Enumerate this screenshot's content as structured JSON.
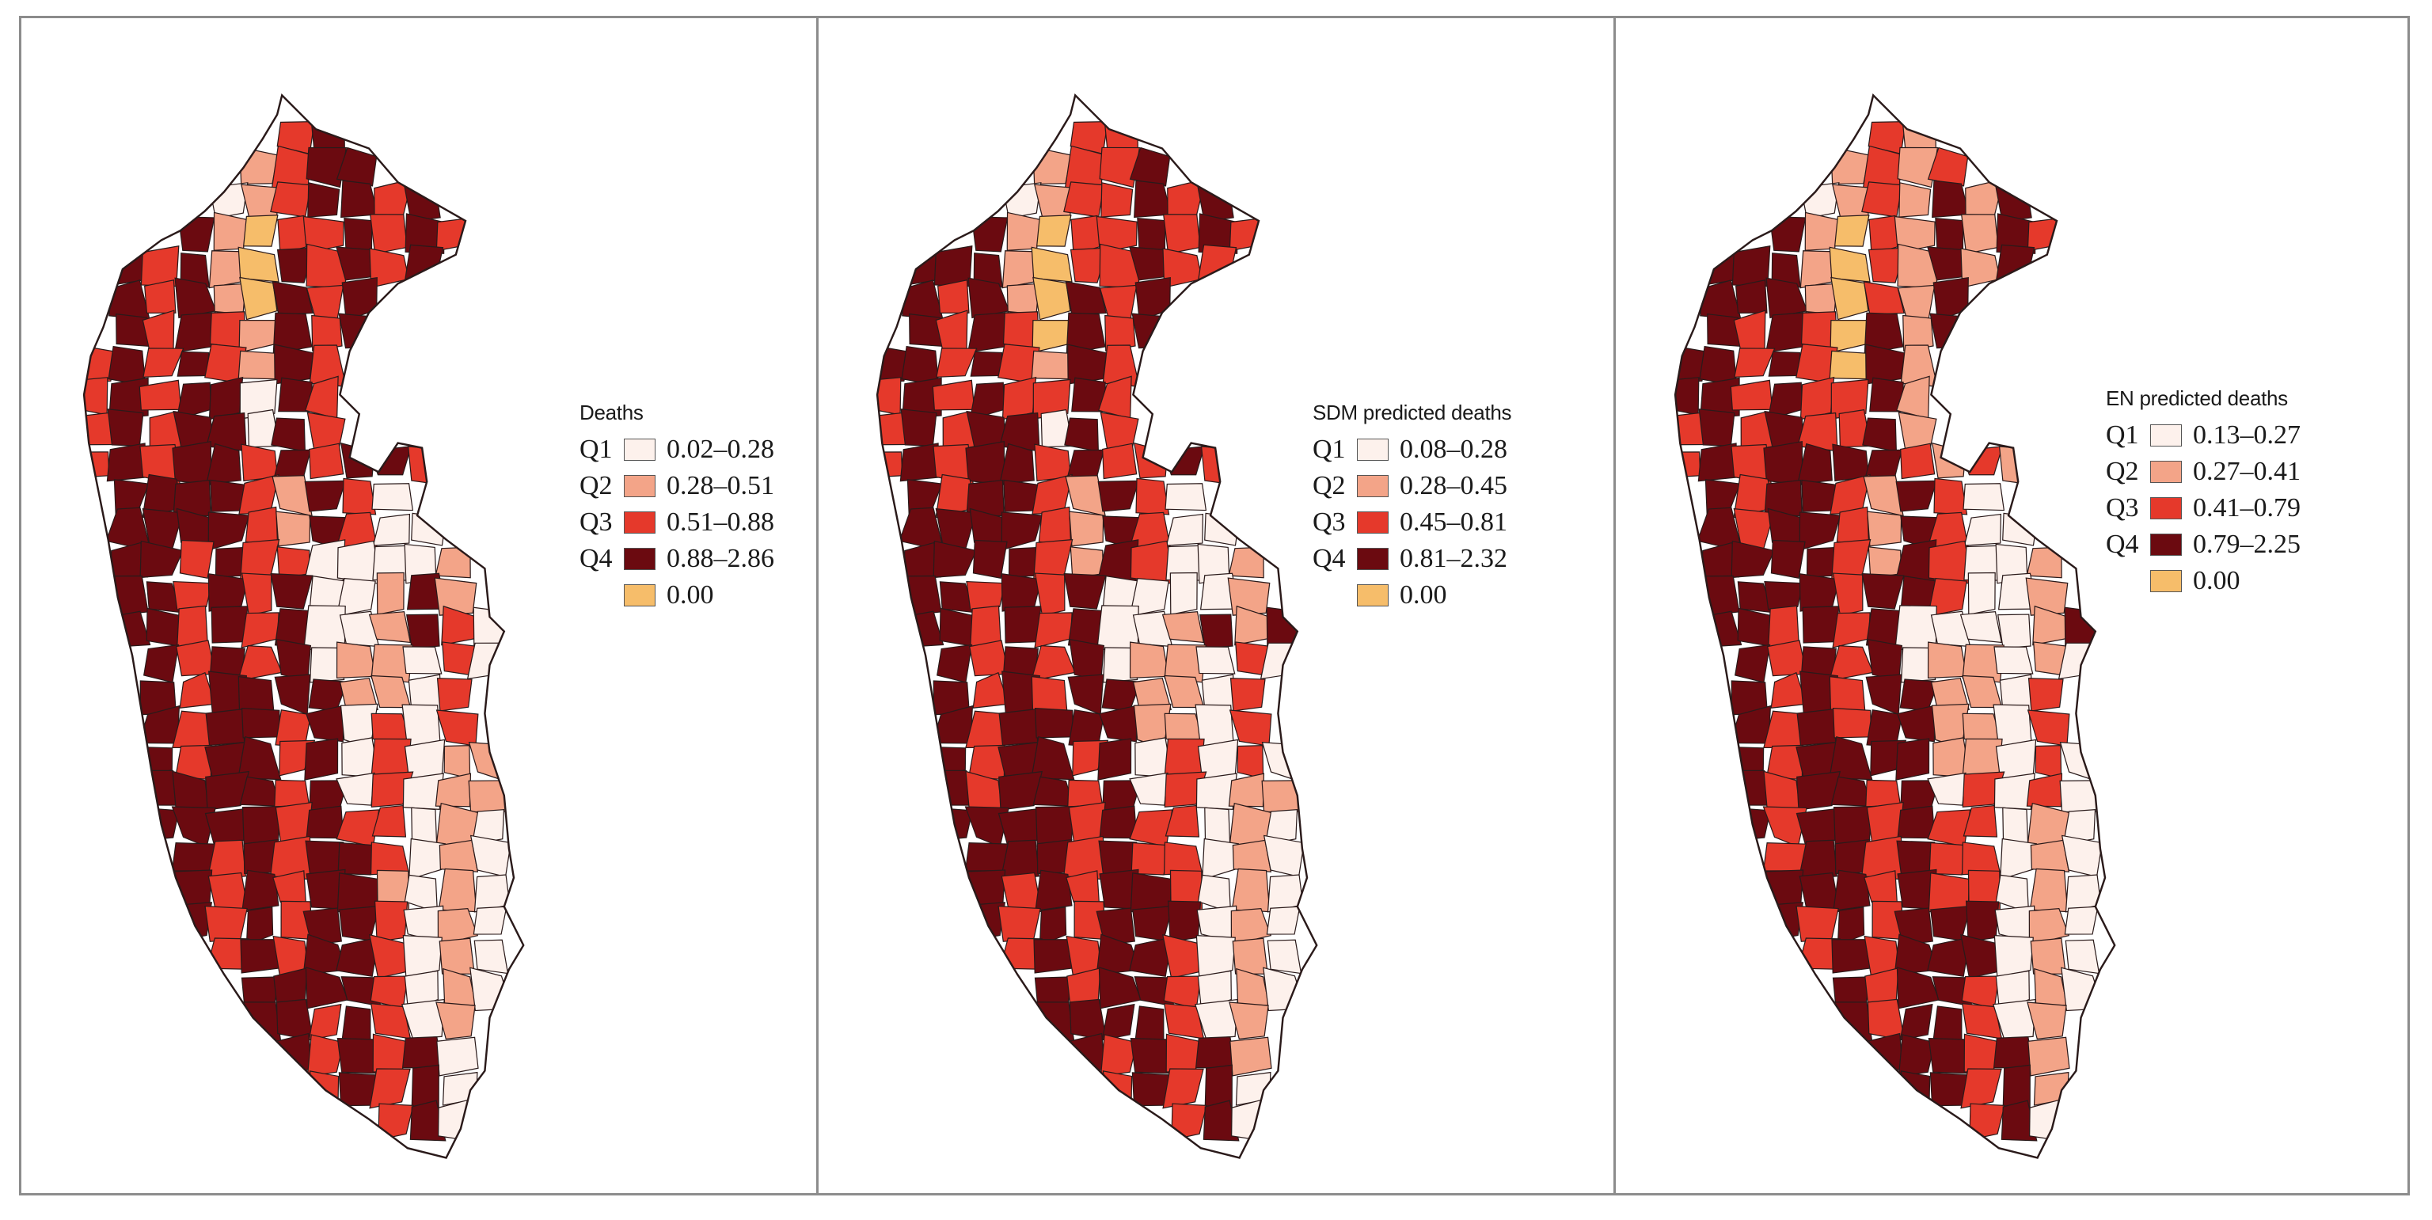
{
  "figure": {
    "colors": {
      "q1": "#fdf1ec",
      "q2": "#f3a488",
      "q3": "#e5392b",
      "q4": "#6b0a10",
      "zero": "#f6bd6a",
      "border": "#2a1a1a",
      "frame": "#8c8c8c"
    },
    "panels": [
      {
        "id": "observed",
        "legend": {
          "title": "Deaths",
          "items": [
            {
              "label": "Q1",
              "range": "0.02–0.28",
              "class": "q1"
            },
            {
              "label": "Q2",
              "range": "0.28–0.51",
              "class": "q2"
            },
            {
              "label": "Q3",
              "range": "0.51–0.88",
              "class": "q3"
            },
            {
              "label": "Q4",
              "range": "0.88–2.86",
              "class": "q4"
            },
            {
              "label": "",
              "range": "0.00",
              "class": "zero"
            }
          ]
        }
      },
      {
        "id": "sdm",
        "legend": {
          "title": "SDM predicted deaths",
          "items": [
            {
              "label": "Q1",
              "range": "0.08–0.28",
              "class": "q1"
            },
            {
              "label": "Q2",
              "range": "0.28–0.45",
              "class": "q2"
            },
            {
              "label": "Q3",
              "range": "0.45–0.81",
              "class": "q3"
            },
            {
              "label": "Q4",
              "range": "0.81–2.32",
              "class": "q4"
            },
            {
              "label": "",
              "range": "0.00",
              "class": "zero"
            }
          ]
        }
      },
      {
        "id": "en",
        "legend": {
          "title": "EN predicted deaths",
          "items": [
            {
              "label": "Q1",
              "range": "0.13–0.27",
              "class": "q1"
            },
            {
              "label": "Q2",
              "range": "0.27–0.41",
              "class": "q2"
            },
            {
              "label": "Q3",
              "range": "0.41–0.79",
              "class": "q3"
            },
            {
              "label": "Q4",
              "range": "0.79–2.25",
              "class": "q4"
            },
            {
              "label": "",
              "range": "0.00",
              "class": "zero"
            }
          ]
        }
      }
    ]
  }
}
